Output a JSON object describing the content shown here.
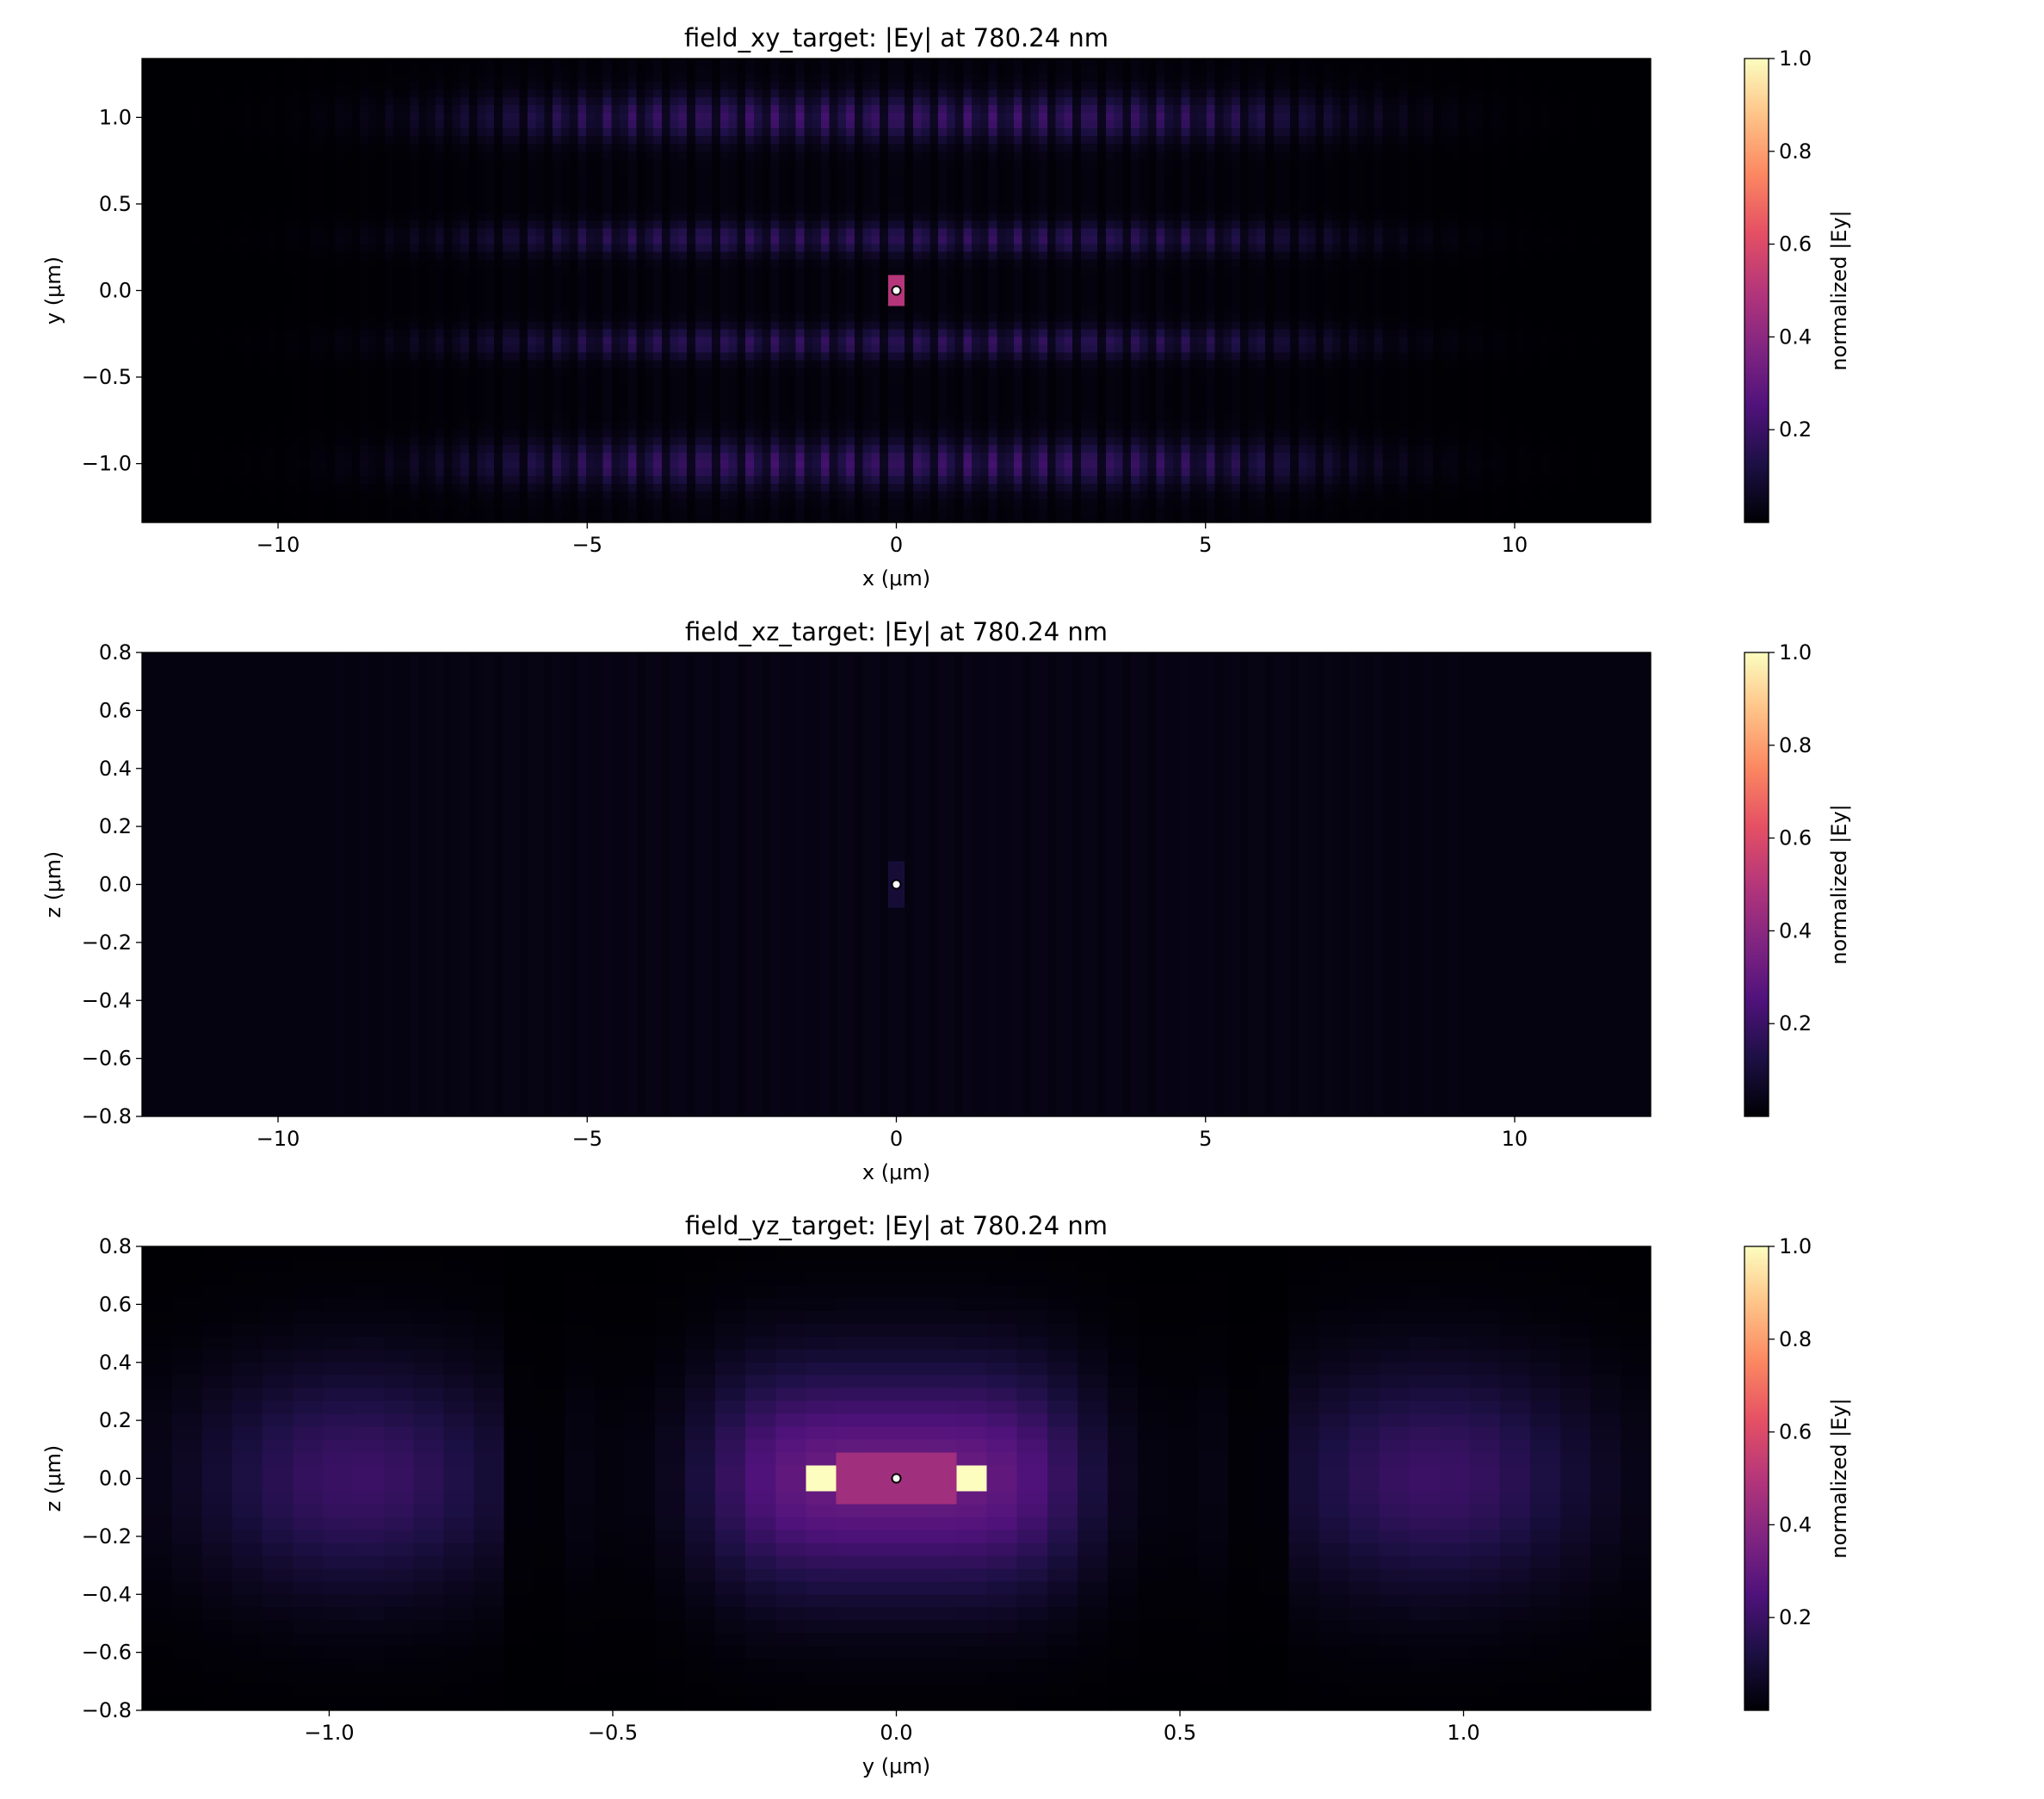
{
  "colors": {
    "colormap": "magma",
    "marker_fill": "#ffffff",
    "marker_edge": "#000000",
    "axes_edge": "#000000"
  },
  "chart_data": [
    {
      "type": "heatmap",
      "title": "field_xy_target: |Ey| at 780.24 nm",
      "xlabel": "x (μm)",
      "ylabel": "y (μm)",
      "xlim": [
        -12.2,
        12.2
      ],
      "ylim": [
        -1.34,
        1.34
      ],
      "xticks": [
        -10,
        -5,
        0,
        5,
        10
      ],
      "xtick_labels": [
        "−10",
        "−5",
        "0",
        "5",
        "10"
      ],
      "yticks": [
        -1.0,
        -0.5,
        0.0,
        0.5,
        1.0
      ],
      "ytick_labels": [
        "−1.0",
        "−0.5",
        "0.0",
        "0.5",
        "1.0"
      ],
      "field_pattern": "interference fringes along x (period ~0.39 μm), lobes near y = ±0.3 and y = ±1.0 μm, envelope fading beyond |x| ≈ 10 μm",
      "peak_level": 0.22,
      "target_marker": {
        "x": 0.0,
        "y": 0.0
      },
      "colorbar": {
        "label": "normalized |Ey|",
        "min": 0.0,
        "max": 1.0,
        "ticks": [
          0.2,
          0.4,
          0.6,
          0.8,
          1.0
        ],
        "tick_labels": [
          "0.2",
          "0.4",
          "0.6",
          "0.8",
          "1.0"
        ]
      },
      "grid": false
    },
    {
      "type": "heatmap",
      "title": "field_xz_target: |Ey| at 780.24 nm",
      "xlabel": "x (μm)",
      "ylabel": "z (μm)",
      "xlim": [
        -12.2,
        12.2
      ],
      "ylim": [
        -0.8,
        0.8
      ],
      "xticks": [
        -10,
        -5,
        0,
        5,
        10
      ],
      "xtick_labels": [
        "−10",
        "−5",
        "0",
        "5",
        "10"
      ],
      "yticks": [
        -0.8,
        -0.6,
        -0.4,
        -0.2,
        0.0,
        0.2,
        0.4,
        0.6,
        0.8
      ],
      "ytick_labels": [
        "−0.8",
        "−0.6",
        "−0.4",
        "−0.2",
        "0.0",
        "0.2",
        "0.4",
        "0.6",
        "0.8"
      ],
      "field_pattern": "nearly uniform dark field with a faint thin hotspot at x = 0",
      "peak_level": 0.1,
      "target_marker": {
        "x": 0.0,
        "y": 0.0
      },
      "colorbar": {
        "label": "normalized |Ey|",
        "min": 0.0,
        "max": 1.0,
        "ticks": [
          0.2,
          0.4,
          0.6,
          0.8,
          1.0
        ],
        "tick_labels": [
          "0.2",
          "0.4",
          "0.6",
          "0.8",
          "1.0"
        ]
      },
      "grid": false
    },
    {
      "type": "heatmap",
      "title": "field_yz_target: |Ey| at 780.24 nm",
      "xlabel": "y (μm)",
      "ylabel": "z (μm)",
      "xlim": [
        -1.33,
        1.33
      ],
      "ylim": [
        -0.8,
        0.8
      ],
      "xticks": [
        -1.0,
        -0.5,
        0.0,
        0.5,
        1.0
      ],
      "xtick_labels": [
        "−1.0",
        "−0.5",
        "0.0",
        "0.5",
        "1.0"
      ],
      "yticks": [
        -0.8,
        -0.6,
        -0.4,
        -0.2,
        0.0,
        0.2,
        0.4,
        0.6,
        0.8
      ],
      "ytick_labels": [
        "−0.8",
        "−0.6",
        "−0.4",
        "−0.2",
        "0.0",
        "0.2",
        "0.4",
        "0.6",
        "0.8"
      ],
      "field_pattern": "central lobe |y| < 0.4 μm (level ~0.3), side lobes near y = ±0.95 μm (level ~0.2), nulls near y = ±0.65 μm, bright bars (level 1.0) at |y| 0.08–0.16 μm and |z| < 0.04 μm",
      "peak_level": 1.0,
      "target_marker": {
        "x": 0.0,
        "y": 0.0
      },
      "colorbar": {
        "label": "normalized |Ey|",
        "min": 0.0,
        "max": 1.0,
        "ticks": [
          0.2,
          0.4,
          0.6,
          0.8,
          1.0
        ],
        "tick_labels": [
          "0.2",
          "0.4",
          "0.6",
          "0.8",
          "1.0"
        ]
      },
      "grid": false
    }
  ]
}
